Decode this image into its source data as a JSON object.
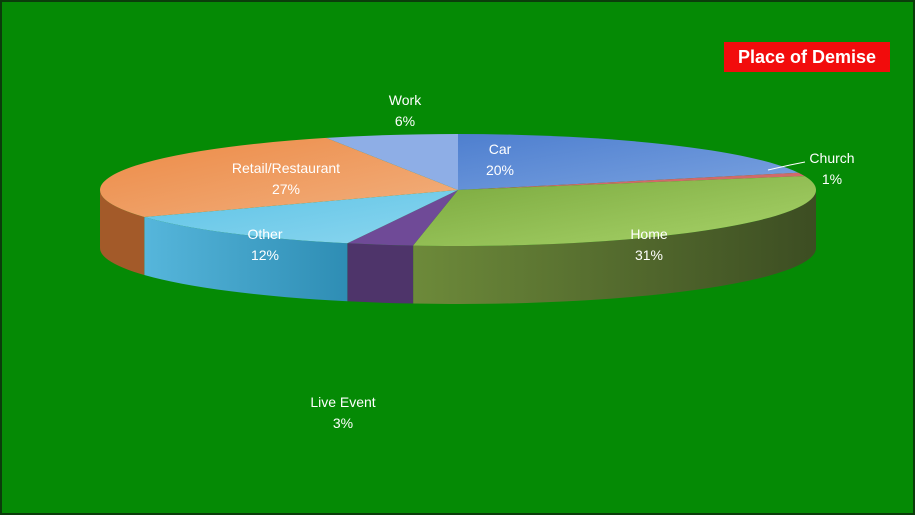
{
  "chart_data": {
    "type": "pie",
    "title": "Place of Demise",
    "legend": "none",
    "slices": [
      {
        "label": "Car",
        "percent": "20%",
        "value": 20,
        "color": "#4a7ccd"
      },
      {
        "label": "Church",
        "percent": "1%",
        "value": 1,
        "color": "#d16a6a"
      },
      {
        "label": "Home",
        "percent": "31%",
        "value": 31,
        "color": "#8fbf4a"
      },
      {
        "label": "Live Event",
        "percent": "3%",
        "value": 3,
        "color": "#6f4a97"
      },
      {
        "label": "Other",
        "percent": "12%",
        "value": 12,
        "color": "#4fb7de"
      },
      {
        "label": "Retail/Restaurant",
        "percent": "27%",
        "value": 27,
        "color": "#e9813a"
      },
      {
        "label": "Work",
        "percent": "6%",
        "value": 6,
        "color": "#8eaee6"
      }
    ],
    "background_color": "#058a05",
    "title_background": "#f20c0c"
  }
}
